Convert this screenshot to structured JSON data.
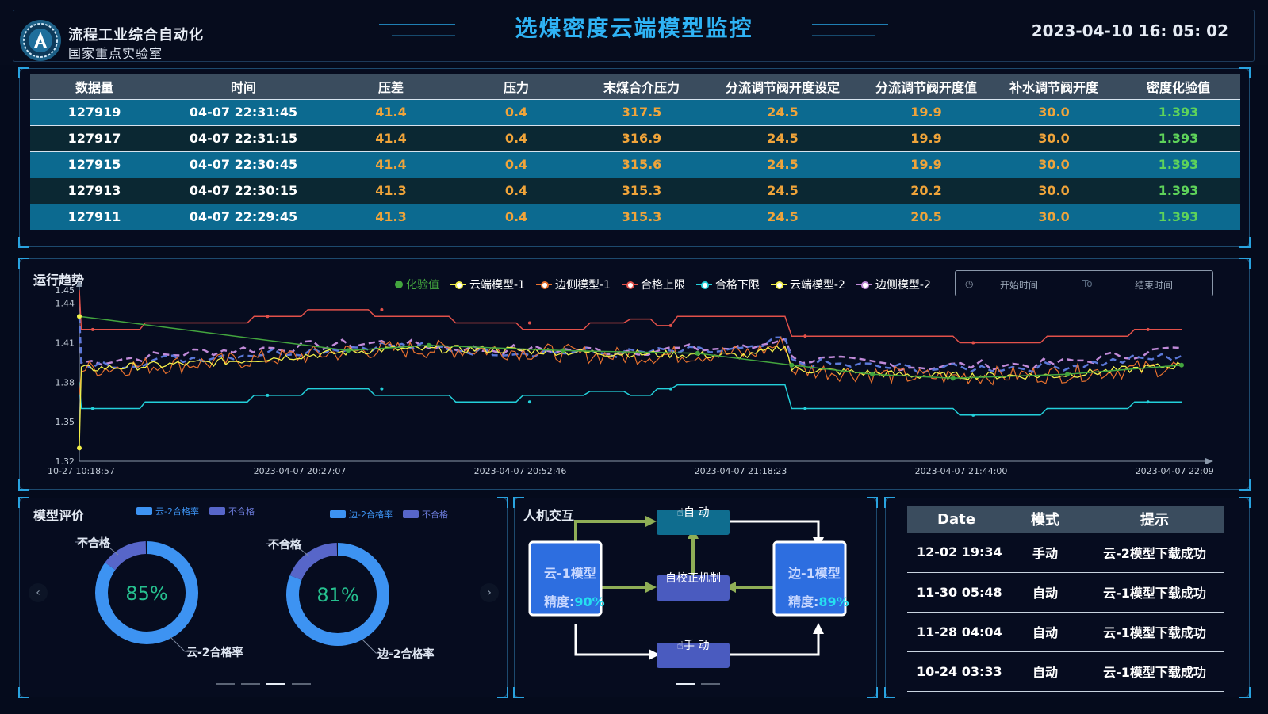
{
  "header": {
    "org_line1": "流程工业综合自动化",
    "org_line2": "国家重点实验室",
    "title": "选煤密度云端模型监控",
    "datetime": "2023-04-10 16: 05: 02"
  },
  "top_table": {
    "columns": [
      "数据量",
      "时间",
      "压差",
      "压力",
      "末煤合介压力",
      "分流调节阀开度设定",
      "分流调节阀开度值",
      "补水调节阀开度",
      "密度化验值"
    ],
    "rows": [
      [
        "127919",
        "04-07 22:31:45",
        "41.4",
        "0.4",
        "317.5",
        "24.5",
        "19.9",
        "30.0",
        "1.393"
      ],
      [
        "127917",
        "04-07 22:31:15",
        "41.4",
        "0.4",
        "316.9",
        "24.5",
        "19.9",
        "30.0",
        "1.393"
      ],
      [
        "127915",
        "04-07 22:30:45",
        "41.4",
        "0.4",
        "315.6",
        "24.5",
        "19.9",
        "30.0",
        "1.393"
      ],
      [
        "127913",
        "04-07 22:30:15",
        "41.3",
        "0.4",
        "315.3",
        "24.5",
        "20.2",
        "30.0",
        "1.393"
      ],
      [
        "127911",
        "04-07 22:29:45",
        "41.3",
        "0.4",
        "315.3",
        "24.5",
        "20.5",
        "30.0",
        "1.393"
      ]
    ]
  },
  "trend": {
    "title": "运行趋势",
    "date_picker": {
      "start_placeholder": "开始时间",
      "to_label": "To",
      "end_placeholder": "结束时间",
      "icon": "clock-icon"
    }
  },
  "chart_data": {
    "type": "line",
    "x_tick_labels": [
      "10-27 10:18:57",
      "2023-04-07 20:27:07",
      "2023-04-07 20:52:46",
      "2023-04-07 21:18:23",
      "2023-04-07 21:44:00",
      "2023-04-07 22:09:37"
    ],
    "y_tick_labels": [
      "1.32",
      "1.35",
      "1.38",
      "1.41",
      "1.44",
      "1.45"
    ],
    "ylim": [
      1.32,
      1.45
    ],
    "legend": [
      "化验值",
      "云端模型-1",
      "边侧模型-1",
      "合格上限",
      "合格下限",
      "云端模型-2",
      "边侧模型-2"
    ],
    "colors": {
      "化验值": "#43a53e",
      "云端模型-1": "#f3f04a",
      "边侧模型-1": "#e8712e",
      "合格上限": "#e2514a",
      "合格下限": "#23d0da",
      "云端模型-2": "#5a78d8",
      "边侧模型-2": "#c08ad8"
    },
    "upper_limit": [
      [
        0,
        1.45
      ],
      [
        0.3,
        1.42
      ],
      [
        9,
        1.42
      ],
      [
        9.8,
        1.425
      ],
      [
        25,
        1.425
      ],
      [
        26,
        1.43
      ],
      [
        33,
        1.43
      ],
      [
        34,
        1.435
      ],
      [
        43,
        1.435
      ],
      [
        44,
        1.43
      ],
      [
        55,
        1.43
      ],
      [
        56,
        1.425
      ],
      [
        65,
        1.425
      ],
      [
        66,
        1.42
      ],
      [
        75,
        1.42
      ],
      [
        76,
        1.425
      ],
      [
        81,
        1.425
      ],
      [
        82,
        1.428
      ],
      [
        85,
        1.428
      ],
      [
        86,
        1.423
      ],
      [
        88,
        1.423
      ],
      [
        89,
        1.43
      ],
      [
        105,
        1.43
      ],
      [
        106,
        1.415
      ],
      [
        130,
        1.415
      ],
      [
        131,
        1.41
      ],
      [
        143,
        1.41
      ],
      [
        144,
        1.415
      ],
      [
        156,
        1.415
      ],
      [
        157,
        1.42
      ],
      [
        164,
        1.42
      ]
    ],
    "lower_limit": [
      [
        0,
        1.38
      ],
      [
        0.3,
        1.36
      ],
      [
        9,
        1.36
      ],
      [
        9.8,
        1.365
      ],
      [
        25,
        1.365
      ],
      [
        26,
        1.37
      ],
      [
        33,
        1.37
      ],
      [
        34,
        1.375
      ],
      [
        43,
        1.375
      ],
      [
        44,
        1.37
      ],
      [
        55,
        1.37
      ],
      [
        56,
        1.365
      ],
      [
        65,
        1.365
      ],
      [
        66,
        1.37
      ],
      [
        75,
        1.37
      ],
      [
        76,
        1.373
      ],
      [
        81,
        1.373
      ],
      [
        82,
        1.37
      ],
      [
        85,
        1.37
      ],
      [
        86,
        1.375
      ],
      [
        88,
        1.375
      ],
      [
        89,
        1.378
      ],
      [
        105,
        1.378
      ],
      [
        106,
        1.36
      ],
      [
        130,
        1.36
      ],
      [
        131,
        1.355
      ],
      [
        143,
        1.355
      ],
      [
        144,
        1.36
      ],
      [
        156,
        1.36
      ],
      [
        157,
        1.365
      ],
      [
        164,
        1.365
      ]
    ],
    "test_value": [
      [
        0,
        1.43
      ],
      [
        40,
        1.404
      ],
      [
        52,
        1.408
      ],
      [
        72,
        1.404
      ],
      [
        92,
        1.402
      ],
      [
        106,
        1.393
      ],
      [
        118,
        1.386
      ],
      [
        130,
        1.383
      ],
      [
        147,
        1.386
      ],
      [
        164,
        1.393
      ]
    ],
    "cloud1_waypoints": [
      [
        0,
        1.33
      ],
      [
        0.3,
        1.39
      ],
      [
        20,
        1.395
      ],
      [
        45,
        1.405
      ],
      [
        60,
        1.405
      ],
      [
        80,
        1.402
      ],
      [
        100,
        1.4
      ],
      [
        105,
        1.408
      ],
      [
        106,
        1.39
      ],
      [
        125,
        1.385
      ],
      [
        145,
        1.385
      ],
      [
        164,
        1.393
      ]
    ],
    "edge1_waypoints": [
      [
        0,
        1.37
      ],
      [
        0.3,
        1.39
      ],
      [
        20,
        1.395
      ],
      [
        45,
        1.405
      ],
      [
        60,
        1.405
      ],
      [
        80,
        1.4
      ],
      [
        100,
        1.402
      ],
      [
        105,
        1.41
      ],
      [
        106,
        1.39
      ],
      [
        125,
        1.384
      ],
      [
        145,
        1.386
      ],
      [
        164,
        1.392
      ]
    ],
    "cloud2_waypoints": [
      [
        0,
        1.43
      ],
      [
        0.3,
        1.392
      ],
      [
        20,
        1.4
      ],
      [
        45,
        1.408
      ],
      [
        60,
        1.404
      ],
      [
        80,
        1.402
      ],
      [
        100,
        1.404
      ],
      [
        105,
        1.413
      ],
      [
        106,
        1.395
      ],
      [
        125,
        1.39
      ],
      [
        145,
        1.392
      ],
      [
        164,
        1.4
      ]
    ],
    "edge2_waypoints": [
      [
        0,
        1.43
      ],
      [
        0.3,
        1.395
      ],
      [
        20,
        1.404
      ],
      [
        45,
        1.41
      ],
      [
        60,
        1.405
      ],
      [
        80,
        1.404
      ],
      [
        100,
        1.406
      ],
      [
        105,
        1.415
      ],
      [
        106,
        1.398
      ],
      [
        125,
        1.392
      ],
      [
        145,
        1.394
      ],
      [
        164,
        1.406
      ]
    ]
  },
  "model_eval": {
    "title": "模型评价",
    "donuts": [
      {
        "legend_pass": "云-2合格率",
        "legend_fail": "不合格",
        "label_fail": "不合格",
        "label_pass": "云-2合格率",
        "center": "85%",
        "pass_ratio": 0.85
      },
      {
        "legend_pass": "边-2合格率",
        "legend_fail": "不合格",
        "label_fail": "不合格",
        "label_pass": "边-2合格率",
        "center": "81%",
        "pass_ratio": 0.81
      }
    ],
    "colors": {
      "pass": "#3d93f2",
      "fail": "#5766c9",
      "center_text": "#26c08f"
    },
    "prev_icon": "‹",
    "next_icon": "›"
  },
  "interaction": {
    "title": "人机交互",
    "auto_label": "自 动",
    "manual_label": "手 动",
    "calibrate_label": "自校正机制",
    "cloud_model": {
      "name": "云-1模型",
      "acc_label": "精度:",
      "acc_value": "90%"
    },
    "edge_model": {
      "name": "边-1模型",
      "acc_label": "精度:",
      "acc_value": "89%"
    }
  },
  "log_table": {
    "columns": [
      "Date",
      "模式",
      "提示"
    ],
    "rows": [
      [
        "12-02 19:34",
        "手动",
        "云-2模型下载成功"
      ],
      [
        "11-30 05:48",
        "自动",
        "云-1模型下载成功"
      ],
      [
        "11-28 04:04",
        "自动",
        "云-1模型下载成功"
      ],
      [
        "10-24 03:33",
        "自动",
        "云-1模型下载成功"
      ]
    ]
  }
}
